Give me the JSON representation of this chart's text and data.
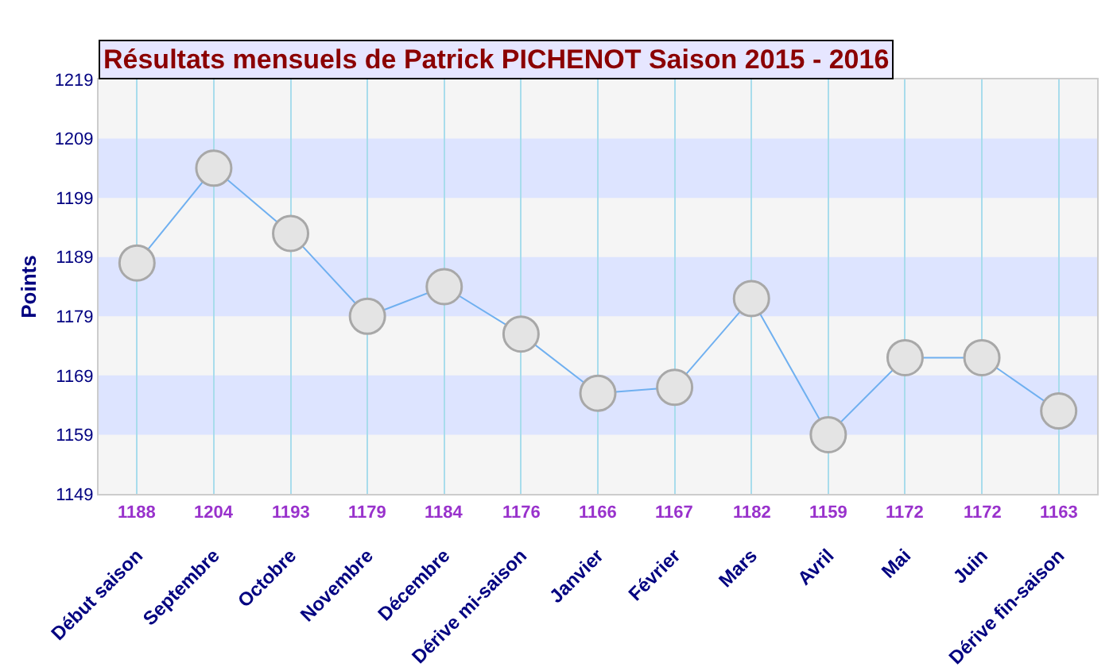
{
  "chart_data": {
    "type": "line",
    "title": "Résultats mensuels de Patrick PICHENOT Saison 2015 - 2016",
    "ylabel": "Points",
    "categories": [
      "Début saison",
      "Septembre",
      "Octobre",
      "Novembre",
      "Décembre",
      "Dérive mi-saison",
      "Janvier",
      "Février",
      "Mars",
      "Avril",
      "Mai",
      "Juin",
      "Dérive fin-saison"
    ],
    "series": [
      {
        "color": "#70b0f0",
        "values": [
          1188,
          1204,
          1193,
          1179,
          1184,
          1176,
          1166,
          1167,
          1182,
          1159,
          1172,
          1172,
          1163
        ]
      }
    ],
    "ylim": [
      1149,
      1219
    ],
    "yticks": [
      1149,
      1159,
      1169,
      1179,
      1189,
      1199,
      1209,
      1219
    ],
    "bands": [
      {
        "axis": "y",
        "from": 1159,
        "to": 1169,
        "color": "#dde4ff"
      },
      {
        "axis": "y",
        "from": 1179,
        "to": 1189,
        "color": "#dde4ff"
      },
      {
        "axis": "y",
        "from": 1199,
        "to": 1209,
        "color": "#dde4ff"
      }
    ],
    "grid": "x",
    "marker": "circle",
    "line_style": "solid",
    "data_labels": true
  }
}
